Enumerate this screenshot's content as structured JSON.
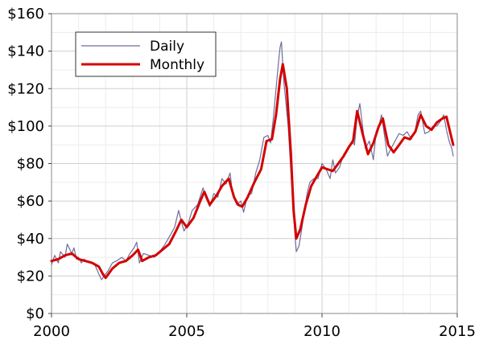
{
  "chart_data": {
    "type": "line",
    "xlim": [
      2000,
      2015
    ],
    "ylim": [
      0,
      160
    ],
    "x_ticks": [
      2000,
      2005,
      2010,
      2015
    ],
    "y_ticks": [
      0,
      20,
      40,
      60,
      80,
      100,
      120,
      140,
      160
    ],
    "y_tick_labels": [
      "$0",
      "$20",
      "$40",
      "$60",
      "$80",
      "$100",
      "$120",
      "$140",
      "$160"
    ],
    "x_tick_labels": [
      "2000",
      "2005",
      "2010",
      "2015"
    ],
    "grid": true,
    "legend_position": "top-left",
    "series": [
      {
        "name": "Daily",
        "color": "#6e6e9a",
        "x": [
          2000.0,
          2000.12,
          2000.25,
          2000.33,
          2000.5,
          2000.58,
          2000.75,
          2000.83,
          2000.92,
          2001.0,
          2001.1,
          2001.2,
          2001.3,
          2001.45,
          2001.6,
          2001.75,
          2001.85,
          2001.95,
          2002.1,
          2002.25,
          2002.4,
          2002.6,
          2002.75,
          2002.9,
          2003.05,
          2003.15,
          2003.25,
          2003.4,
          2003.6,
          2003.8,
          2004.0,
          2004.2,
          2004.4,
          2004.55,
          2004.7,
          2004.8,
          2004.9,
          2005.05,
          2005.2,
          2005.4,
          2005.6,
          2005.7,
          2005.85,
          2006.0,
          2006.15,
          2006.3,
          2006.45,
          2006.6,
          2006.7,
          2006.85,
          2007.0,
          2007.1,
          2007.25,
          2007.4,
          2007.55,
          2007.7,
          2007.85,
          2008.0,
          2008.1,
          2008.2,
          2008.3,
          2008.4,
          2008.45,
          2008.5,
          2008.58,
          2008.65,
          2008.75,
          2008.85,
          2008.92,
          2009.0,
          2009.05,
          2009.15,
          2009.25,
          2009.35,
          2009.45,
          2009.55,
          2009.7,
          2009.85,
          2010.0,
          2010.15,
          2010.3,
          2010.4,
          2010.5,
          2010.65,
          2010.8,
          2010.95,
          2011.1,
          2011.2,
          2011.3,
          2011.4,
          2011.5,
          2011.6,
          2011.75,
          2011.9,
          2012.0,
          2012.1,
          2012.2,
          2012.3,
          2012.42,
          2012.55,
          2012.7,
          2012.85,
          2013.0,
          2013.15,
          2013.3,
          2013.45,
          2013.55,
          2013.65,
          2013.8,
          2013.95,
          2014.1,
          2014.25,
          2014.4,
          2014.5,
          2014.6,
          2014.7,
          2014.8,
          2014.85
        ],
        "values": [
          26,
          31,
          27,
          33,
          30,
          37,
          32,
          35,
          29,
          30,
          27,
          29,
          28,
          27,
          26,
          21,
          18,
          20,
          23,
          27,
          28,
          30,
          28,
          32,
          35,
          38,
          27,
          32,
          31,
          30,
          33,
          37,
          42,
          46,
          55,
          49,
          44,
          48,
          55,
          58,
          67,
          62,
          57,
          64,
          62,
          72,
          69,
          75,
          63,
          58,
          60,
          54,
          63,
          64,
          75,
          82,
          94,
          95,
          91,
          104,
          120,
          135,
          142,
          145,
          125,
          115,
          100,
          75,
          60,
          42,
          33,
          36,
          45,
          55,
          64,
          70,
          72,
          72,
          80,
          77,
          72,
          82,
          75,
          78,
          85,
          88,
          92,
          90,
          105,
          112,
          100,
          88,
          92,
          82,
          97,
          100,
          106,
          96,
          84,
          88,
          92,
          96,
          95,
          97,
          93,
          98,
          106,
          108,
          96,
          97,
          100,
          100,
          103,
          106,
          98,
          92,
          88,
          84
        ]
      },
      {
        "name": "Monthly",
        "color": "#d40000",
        "x": [
          2000.0,
          2000.25,
          2000.5,
          2000.75,
          2001.0,
          2001.25,
          2001.5,
          2001.75,
          2001.9,
          2002.0,
          2002.25,
          2002.5,
          2002.75,
          2003.0,
          2003.2,
          2003.35,
          2003.6,
          2003.85,
          2004.1,
          2004.35,
          2004.6,
          2004.8,
          2005.0,
          2005.25,
          2005.5,
          2005.65,
          2005.85,
          2006.1,
          2006.3,
          2006.55,
          2006.75,
          2006.9,
          2007.05,
          2007.25,
          2007.5,
          2007.75,
          2007.95,
          2008.15,
          2008.3,
          2008.45,
          2008.55,
          2008.7,
          2008.85,
          2008.95,
          2009.05,
          2009.2,
          2009.4,
          2009.6,
          2009.8,
          2010.0,
          2010.2,
          2010.4,
          2010.6,
          2010.8,
          2011.0,
          2011.15,
          2011.3,
          2011.5,
          2011.7,
          2011.9,
          2012.1,
          2012.25,
          2012.45,
          2012.65,
          2012.85,
          2013.05,
          2013.25,
          2013.45,
          2013.65,
          2013.85,
          2014.05,
          2014.25,
          2014.45,
          2014.6,
          2014.75,
          2014.85
        ],
        "values": [
          28,
          29,
          31,
          32,
          29,
          28,
          27,
          25,
          21,
          19,
          24,
          27,
          28,
          31,
          34,
          28,
          30,
          31,
          34,
          37,
          44,
          50,
          46,
          51,
          60,
          65,
          58,
          63,
          68,
          72,
          62,
          58,
          57,
          62,
          70,
          77,
          92,
          93,
          106,
          125,
          133,
          120,
          85,
          55,
          40,
          45,
          58,
          68,
          73,
          78,
          77,
          76,
          80,
          84,
          89,
          92,
          108,
          96,
          85,
          91,
          100,
          104,
          90,
          86,
          90,
          94,
          93,
          97,
          106,
          100,
          98,
          102,
          104,
          105,
          96,
          90
        ]
      }
    ]
  }
}
